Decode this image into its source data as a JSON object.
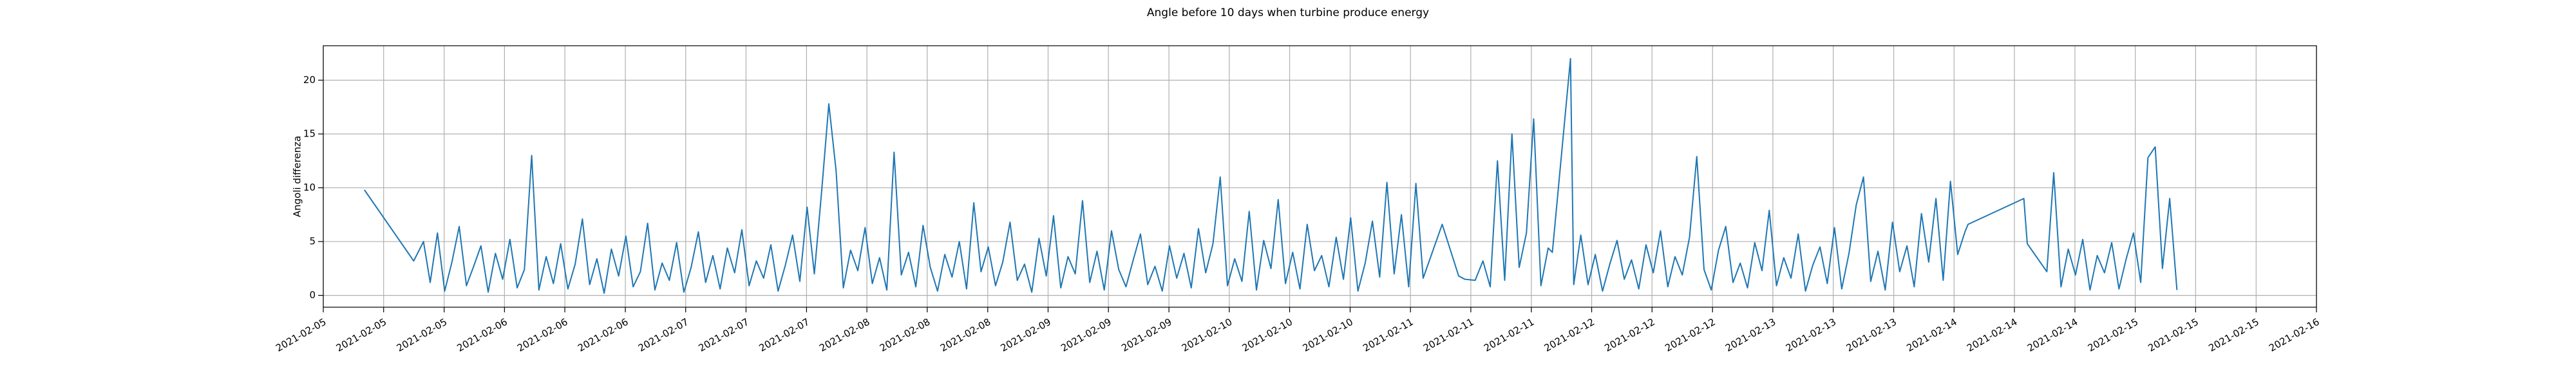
{
  "chart_data": {
    "type": "line",
    "title": "Angle before 10 days when turbine produce energy",
    "ylabel": "Angoli differenza",
    "color": "#1f77b4",
    "grid": true,
    "xlim": [
      5,
      16
    ],
    "ylim": [
      -1.1,
      23.2
    ],
    "yticks": [
      0,
      5,
      10,
      15,
      20
    ],
    "xticks": [
      {
        "value": 5,
        "label": "2021-02-05"
      },
      {
        "value": 5.333,
        "label": "2021-02-05"
      },
      {
        "value": 5.667,
        "label": "2021-02-05"
      },
      {
        "value": 6,
        "label": "2021-02-06"
      },
      {
        "value": 6.333,
        "label": "2021-02-06"
      },
      {
        "value": 6.667,
        "label": "2021-02-06"
      },
      {
        "value": 7,
        "label": "2021-02-07"
      },
      {
        "value": 7.333,
        "label": "2021-02-07"
      },
      {
        "value": 7.667,
        "label": "2021-02-07"
      },
      {
        "value": 8,
        "label": "2021-02-08"
      },
      {
        "value": 8.333,
        "label": "2021-02-08"
      },
      {
        "value": 8.667,
        "label": "2021-02-08"
      },
      {
        "value": 9,
        "label": "2021-02-09"
      },
      {
        "value": 9.333,
        "label": "2021-02-09"
      },
      {
        "value": 9.667,
        "label": "2021-02-09"
      },
      {
        "value": 10,
        "label": "2021-02-10"
      },
      {
        "value": 10.333,
        "label": "2021-02-10"
      },
      {
        "value": 10.667,
        "label": "2021-02-10"
      },
      {
        "value": 11,
        "label": "2021-02-11"
      },
      {
        "value": 11.333,
        "label": "2021-02-11"
      },
      {
        "value": 11.667,
        "label": "2021-02-11"
      },
      {
        "value": 12,
        "label": "2021-02-12"
      },
      {
        "value": 12.333,
        "label": "2021-02-12"
      },
      {
        "value": 12.667,
        "label": "2021-02-12"
      },
      {
        "value": 13,
        "label": "2021-02-13"
      },
      {
        "value": 13.333,
        "label": "2021-02-13"
      },
      {
        "value": 13.667,
        "label": "2021-02-13"
      },
      {
        "value": 14,
        "label": "2021-02-14"
      },
      {
        "value": 14.333,
        "label": "2021-02-14"
      },
      {
        "value": 14.667,
        "label": "2021-02-14"
      },
      {
        "value": 15,
        "label": "2021-02-15"
      },
      {
        "value": 15.333,
        "label": "2021-02-15"
      },
      {
        "value": 15.667,
        "label": "2021-02-15"
      },
      {
        "value": 16,
        "label": "2021-02-16"
      }
    ],
    "x": [
      5.227,
      5.499,
      5.553,
      5.59,
      5.63,
      5.67,
      5.71,
      5.75,
      5.79,
      5.83,
      5.87,
      5.91,
      5.95,
      5.99,
      6.03,
      6.07,
      6.11,
      6.15,
      6.19,
      6.23,
      6.27,
      6.31,
      6.35,
      6.39,
      6.43,
      6.47,
      6.51,
      6.55,
      6.59,
      6.63,
      6.67,
      6.71,
      6.75,
      6.79,
      6.83,
      6.87,
      6.91,
      6.95,
      6.99,
      7.03,
      7.07,
      7.11,
      7.15,
      7.19,
      7.23,
      7.27,
      7.31,
      7.35,
      7.39,
      7.43,
      7.47,
      7.51,
      7.55,
      7.59,
      7.63,
      7.67,
      7.71,
      7.75,
      7.79,
      7.83,
      7.87,
      7.91,
      7.95,
      7.99,
      8.03,
      8.07,
      8.11,
      8.15,
      8.19,
      8.23,
      8.27,
      8.31,
      8.35,
      8.39,
      8.43,
      8.47,
      8.51,
      8.55,
      8.59,
      8.63,
      8.67,
      8.71,
      8.75,
      8.79,
      8.83,
      8.87,
      8.91,
      8.95,
      8.99,
      9.03,
      9.07,
      9.11,
      9.15,
      9.19,
      9.23,
      9.27,
      9.31,
      9.35,
      9.39,
      9.43,
      9.47,
      9.51,
      9.55,
      9.59,
      9.63,
      9.67,
      9.71,
      9.75,
      9.79,
      9.83,
      9.87,
      9.91,
      9.95,
      9.99,
      10.03,
      10.07,
      10.11,
      10.15,
      10.19,
      10.23,
      10.27,
      10.31,
      10.35,
      10.39,
      10.43,
      10.47,
      10.51,
      10.55,
      10.59,
      10.63,
      10.67,
      10.71,
      10.75,
      10.79,
      10.83,
      10.87,
      10.91,
      10.95,
      10.99,
      11.03,
      11.07,
      11.175,
      11.266,
      11.3,
      11.357,
      11.4,
      11.44,
      11.48,
      11.52,
      11.56,
      11.6,
      11.64,
      11.68,
      11.72,
      11.76,
      11.783,
      11.883,
      11.901,
      11.94,
      11.98,
      12.02,
      12.06,
      12.1,
      12.14,
      12.18,
      12.22,
      12.26,
      12.3,
      12.34,
      12.38,
      12.42,
      12.46,
      12.5,
      12.54,
      12.58,
      12.62,
      12.66,
      12.7,
      12.74,
      12.78,
      12.82,
      12.86,
      12.9,
      12.94,
      12.98,
      13.02,
      13.06,
      13.1,
      13.14,
      13.18,
      13.22,
      13.26,
      13.3,
      13.34,
      13.38,
      13.42,
      13.46,
      13.5,
      13.54,
      13.58,
      13.62,
      13.66,
      13.7,
      13.74,
      13.78,
      13.82,
      13.86,
      13.9,
      13.94,
      13.98,
      14.02,
      14.06,
      14.077,
      14.385,
      14.404,
      14.512,
      14.55,
      14.59,
      14.63,
      14.67,
      14.71,
      14.75,
      14.79,
      14.83,
      14.87,
      14.91,
      14.95,
      14.99,
      15.03,
      15.07,
      15.11,
      15.15,
      15.19,
      15.23
    ],
    "values": [
      9.8,
      3.2,
      5.0,
      1.2,
      5.8,
      0.4,
      3.1,
      6.4,
      0.9,
      2.7,
      4.6,
      0.3,
      3.9,
      1.5,
      5.2,
      0.7,
      2.4,
      13.0,
      0.5,
      3.6,
      1.1,
      4.8,
      0.6,
      2.9,
      7.1,
      1.0,
      3.4,
      0.2,
      4.3,
      1.8,
      5.5,
      0.8,
      2.2,
      6.7,
      0.5,
      3.0,
      1.4,
      4.9,
      0.3,
      2.6,
      5.9,
      1.2,
      3.7,
      0.6,
      4.4,
      2.1,
      6.1,
      0.9,
      3.2,
      1.6,
      4.7,
      0.4,
      2.8,
      5.6,
      1.3,
      8.2,
      2.0,
      9.6,
      17.8,
      11.6,
      0.7,
      4.2,
      2.3,
      6.3,
      1.1,
      3.5,
      0.5,
      13.3,
      1.9,
      4.0,
      0.8,
      6.5,
      2.6,
      0.4,
      3.8,
      1.7,
      5.0,
      0.6,
      8.6,
      2.2,
      4.5,
      0.9,
      3.1,
      6.8,
      1.4,
      2.9,
      0.3,
      5.3,
      1.8,
      7.4,
      0.7,
      3.6,
      2.0,
      8.8,
      1.2,
      4.1,
      0.5,
      6.0,
      2.4,
      0.8,
      3.3,
      5.7,
      1.0,
      2.7,
      0.4,
      4.6,
      1.6,
      3.9,
      0.7,
      6.2,
      2.1,
      4.8,
      11.0,
      0.9,
      3.4,
      1.3,
      7.8,
      0.5,
      5.1,
      2.5,
      8.9,
      1.1,
      4.0,
      0.6,
      6.6,
      2.3,
      3.7,
      0.8,
      5.4,
      1.5,
      7.2,
      0.4,
      3.0,
      6.9,
      1.7,
      10.5,
      2.0,
      7.5,
      0.8,
      10.4,
      1.6,
      6.6,
      1.8,
      1.5,
      1.4,
      3.2,
      0.8,
      12.5,
      1.4,
      15.0,
      2.6,
      5.8,
      16.4,
      0.9,
      4.4,
      4.0,
      22.0,
      1.0,
      5.6,
      1.0,
      3.8,
      0.4,
      2.9,
      5.1,
      1.5,
      3.3,
      0.6,
      4.7,
      2.1,
      6.0,
      0.8,
      3.6,
      1.9,
      5.4,
      12.9,
      2.4,
      0.5,
      4.2,
      6.4,
      1.2,
      3.0,
      0.7,
      4.9,
      2.3,
      7.9,
      0.9,
      3.5,
      1.6,
      5.7,
      0.4,
      2.8,
      4.5,
      1.1,
      6.3,
      0.6,
      3.9,
      8.4,
      11.0,
      1.3,
      4.1,
      0.5,
      6.8,
      2.2,
      4.6,
      0.8,
      7.6,
      3.1,
      9.0,
      1.4,
      10.6,
      3.8,
      5.9,
      6.6,
      9.0,
      4.8,
      2.2,
      11.4,
      0.8,
      4.3,
      1.9,
      5.2,
      0.5,
      3.7,
      2.1,
      4.9,
      0.6,
      3.4,
      5.8,
      1.2,
      12.8,
      13.8,
      2.5,
      9.0,
      0.5
    ]
  }
}
